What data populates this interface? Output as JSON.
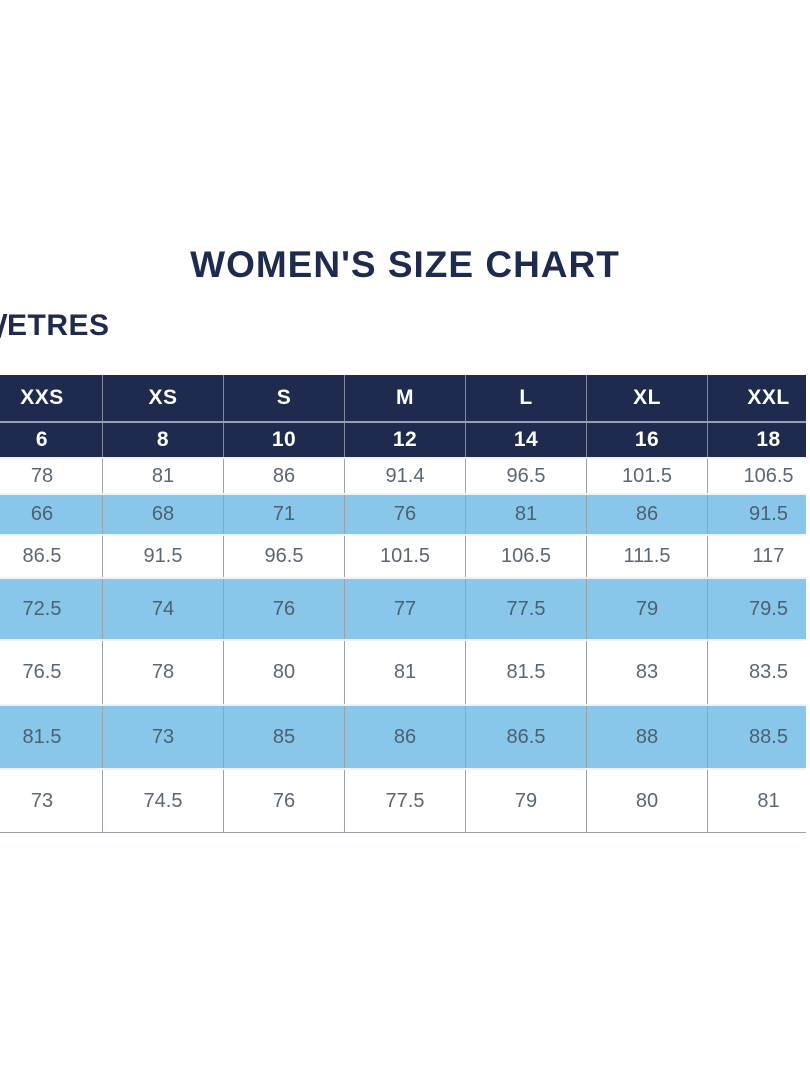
{
  "title": "WOMEN'S SIZE CHART",
  "units_label_partial": "ETRES",
  "colors": {
    "navy": "#1f2b4e",
    "light_blue": "#88c7e9",
    "header_text": "#ffffff",
    "cell_text": "#5b6772",
    "grid_line": "#99a1ab"
  },
  "chart_data": {
    "type": "table",
    "title": "WOMEN'S SIZE CHART",
    "column_headers_size": [
      "XXS",
      "XS",
      "S",
      "M",
      "L",
      "XL",
      "XXL"
    ],
    "column_headers_numeric": [
      "6",
      "8",
      "10",
      "12",
      "14",
      "16",
      "18"
    ],
    "rows": [
      [
        "78",
        "81",
        "86",
        "91.4",
        "96.5",
        "101.5",
        "106.5"
      ],
      [
        "66",
        "68",
        "71",
        "76",
        "81",
        "86",
        "91.5"
      ],
      [
        "86.5",
        "91.5",
        "96.5",
        "101.5",
        "106.5",
        "111.5",
        "117"
      ],
      [
        "72.5",
        "74",
        "76",
        "77",
        "77.5",
        "79",
        "79.5"
      ],
      [
        "76.5",
        "78",
        "80",
        "81",
        "81.5",
        "83",
        "83.5"
      ],
      [
        "81.5",
        "73",
        "85",
        "86",
        "86.5",
        "88",
        "88.5"
      ],
      [
        "73",
        "74.5",
        "76",
        "77.5",
        "79",
        "80",
        "81"
      ]
    ]
  }
}
